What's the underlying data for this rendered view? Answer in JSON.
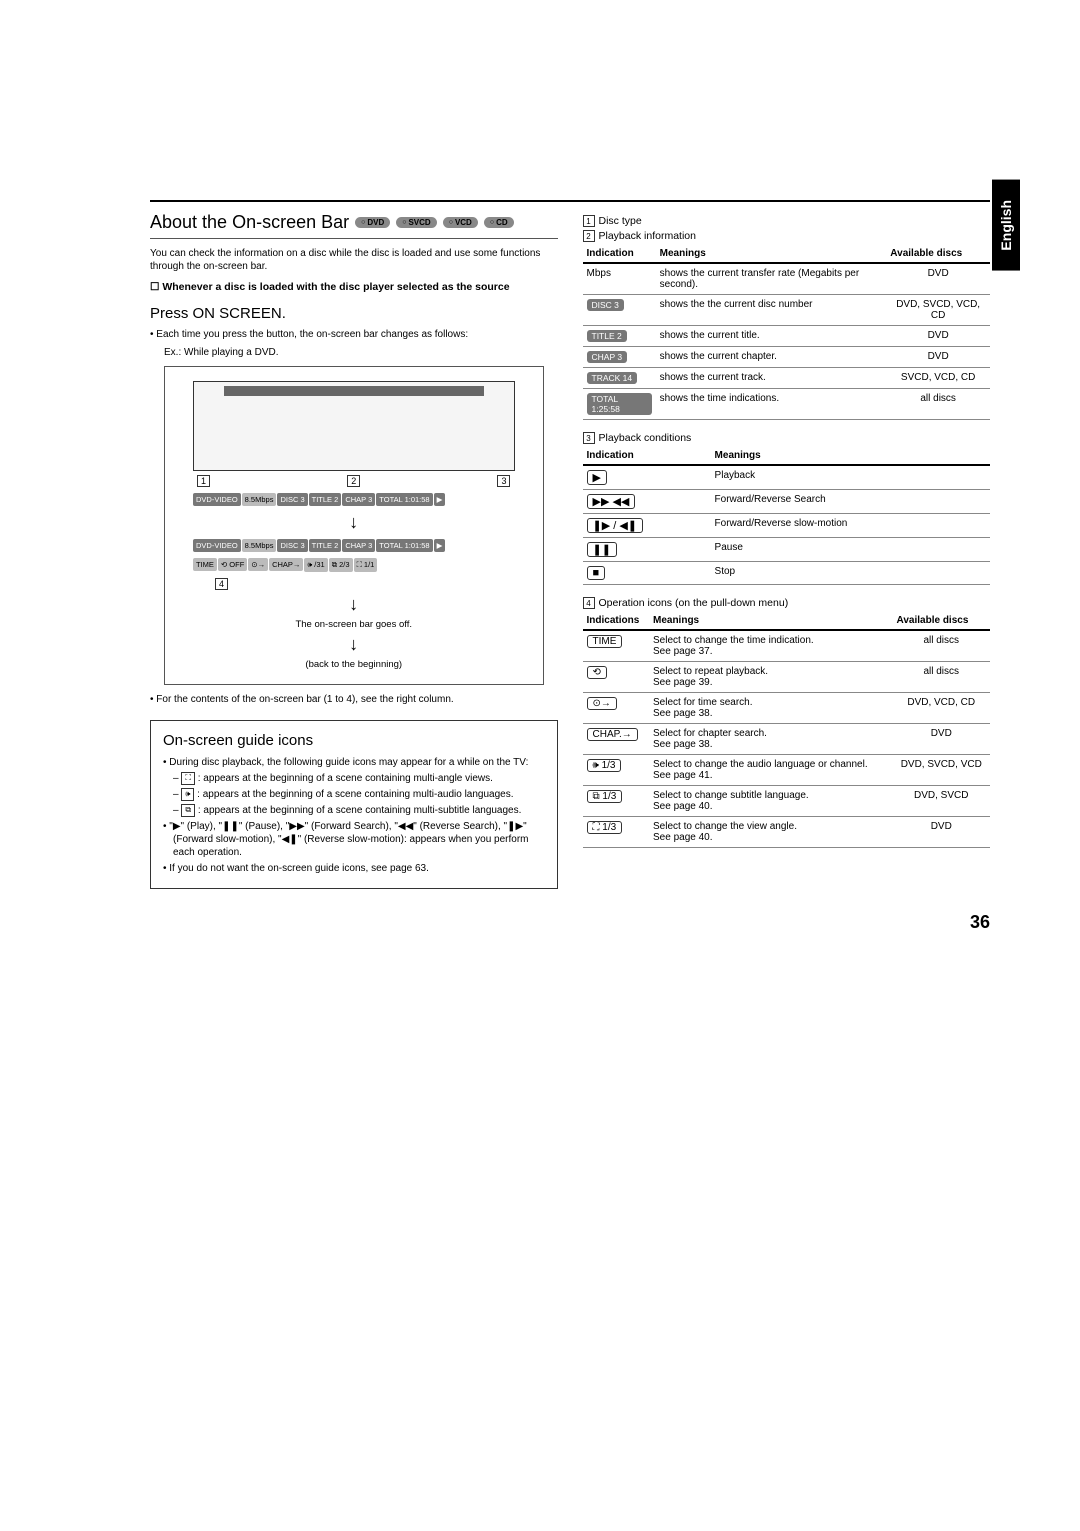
{
  "language_tab": "English",
  "page_number": "36",
  "about": {
    "title": "About the On-screen Bar",
    "badges": [
      "DVD",
      "SVCD",
      "VCD",
      "CD"
    ]
  },
  "intro": "You can check the information on a disc while the disc is loaded and use some functions through the on-screen bar.",
  "checkbox": "Whenever a disc is loaded with the disc player selected as the source",
  "press": "Press ON SCREEN.",
  "press_note": "Each time you press the button, the on-screen bar changes as follows:",
  "ex_line": "Ex.: While playing a DVD.",
  "diagram": {
    "callouts": [
      "1",
      "2",
      "3",
      "4"
    ],
    "osd1": [
      "DVD-VIDEO",
      "8.5Mbps",
      "DISC 3",
      "TITLE 2",
      "CHAP 3",
      "TOTAL 1:01:58",
      "▶"
    ],
    "osd2_a": [
      "DVD-VIDEO",
      "8.5Mbps",
      "DISC 3",
      "TITLE 2",
      "CHAP 3",
      "TOTAL 1:01:58",
      "▶"
    ],
    "osd2_b": [
      "TIME",
      "⟲ OFF",
      "⊙→",
      "CHAP→",
      "🕪 /31",
      "⧉ 2/3",
      "⛶ 1/1"
    ],
    "goes_off": "The on-screen bar goes off.",
    "back": "(back to the beginning)"
  },
  "contents_note": "For the contents of the on-screen bar (1 to 4), see the right column.",
  "guide": {
    "title": "On-screen guide icons",
    "intro": "During disc playback, the following guide icons may appear for a while on the TV:",
    "items": [
      {
        "icon": "⛶",
        "text": "appears at the beginning of a scene containing multi-angle views."
      },
      {
        "icon": "🕪",
        "text": "appears at the beginning of a scene containing multi-audio languages."
      },
      {
        "icon": "⧉",
        "text": "appears at the beginning of a scene containing multi-subtitle languages."
      }
    ],
    "playback_line": "\"▶\" (Play), \"❚❚\" (Pause), \"▶▶\" (Forward Search), \"◀◀\" (Reverse Search), \"❚▶\" (Forward slow-motion), \"◀❚\" (Reverse slow-motion): appears when you perform each operation.",
    "nowant": "If you do not want the on-screen guide icons, see page 63."
  },
  "right": {
    "s1": "Disc type",
    "s2": "Playback information",
    "t2": {
      "headers": [
        "Indication",
        "Meanings",
        "Available discs"
      ],
      "rows": [
        {
          "ind": "Mbps",
          "tag": false,
          "mean": "shows the current transfer rate (Megabits per second).",
          "disc": "DVD"
        },
        {
          "ind": "DISC 3",
          "tag": true,
          "mean": "shows the the current disc number",
          "disc": "DVD, SVCD, VCD, CD"
        },
        {
          "ind": "TITLE 2",
          "tag": true,
          "mean": "shows the current title.",
          "disc": "DVD"
        },
        {
          "ind": "CHAP 3",
          "tag": true,
          "mean": "shows the current chapter.",
          "disc": "DVD"
        },
        {
          "ind": "TRACK 14",
          "tag": true,
          "mean": "shows the current track.",
          "disc": "SVCD, VCD, CD"
        },
        {
          "ind": "TOTAL 1:25:58",
          "tag": true,
          "mean": "shows the time indications.",
          "disc": "all discs"
        }
      ]
    },
    "s3": "Playback conditions",
    "t3": {
      "headers": [
        "Indication",
        "Meanings"
      ],
      "rows": [
        {
          "sym": "▶",
          "mean": "Playback"
        },
        {
          "sym": "▶▶ ◀◀",
          "mean": "Forward/Reverse Search"
        },
        {
          "sym": "❚▶ / ◀❚",
          "mean": "Forward/Reverse slow-motion"
        },
        {
          "sym": "❚❚",
          "mean": "Pause"
        },
        {
          "sym": "■",
          "mean": "Stop"
        }
      ]
    },
    "s4": "Operation icons (on the pull-down menu)",
    "t4": {
      "headers": [
        "Indications",
        "Meanings",
        "Available discs"
      ],
      "rows": [
        {
          "sym": "TIME",
          "box": true,
          "mean": "Select to change the time indication.\nSee page 37.",
          "disc": "all discs"
        },
        {
          "sym": "⟲",
          "box": true,
          "mean": "Select to repeat playback.\nSee page 39.",
          "disc": "all discs"
        },
        {
          "sym": "⊙→",
          "box": true,
          "mean": "Select for time search.\nSee page 38.",
          "disc": "DVD, VCD, CD"
        },
        {
          "sym": "CHAP.→",
          "box": true,
          "mean": "Select for chapter search.\nSee page 38.",
          "disc": "DVD"
        },
        {
          "sym": "🕪 1/3",
          "box": true,
          "mean": "Select to change the audio language or channel.\nSee page 41.",
          "disc": "DVD, SVCD, VCD"
        },
        {
          "sym": "⧉ 1/3",
          "box": true,
          "mean": "Select to change subtitle language.\nSee page 40.",
          "disc": "DVD, SVCD"
        },
        {
          "sym": "⛶ 1/3",
          "box": true,
          "mean": "Select to change the view angle.\nSee page 40.",
          "disc": "DVD"
        }
      ]
    }
  }
}
